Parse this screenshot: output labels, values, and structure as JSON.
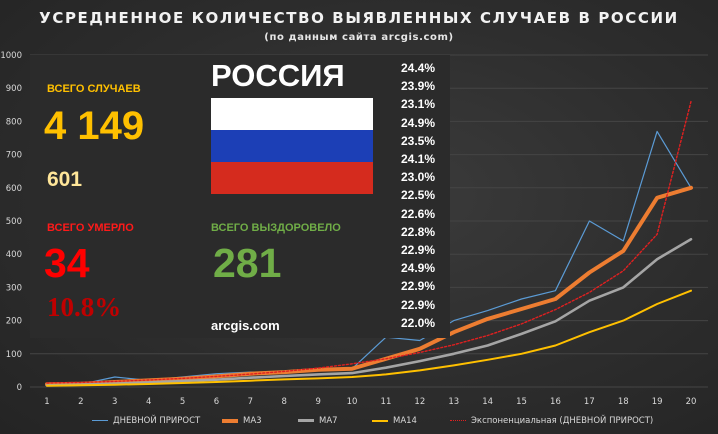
{
  "title": "УСРЕДНЕННОЕ КОЛИЧЕСТВО ВЫЯВЛЕННЫХ СЛУЧАЕВ В РОССИИ",
  "subtitle": "(по данным сайта arcgis.com)",
  "overlay": {
    "country": "РОССИЯ",
    "total_cases_label": "ВСЕГО СЛУЧАЕВ",
    "total_cases_value": "4 149",
    "new_cases_value": "601",
    "total_deaths_label": "ВСЕГО УМЕРЛО",
    "total_deaths_value": "34",
    "death_rate": "10.8%",
    "total_recovered_label": "ВСЕГО ВЫЗДОРОВЕЛО",
    "total_recovered_value": "281",
    "source": "arcgis.com"
  },
  "percent_column": [
    "24.4%",
    "23.9%",
    "23.1%",
    "24.9%",
    "23.5%",
    "24.1%",
    "23.0%",
    "22.5%",
    "22.6%",
    "22.8%",
    "22.9%",
    "24.9%",
    "22.9%",
    "22.9%",
    "22.0%"
  ],
  "colors": {
    "daily": "#5b9bd5",
    "ma3": "#ed7d31",
    "ma7": "#a5a5a5",
    "ma14": "#ffc000",
    "exp": "#e02020"
  },
  "chart_data": {
    "type": "line",
    "title": "УСРЕДНЕННОЕ КОЛИЧЕСТВО ВЫЯВЛЕННЫХ СЛУЧАЕВ В РОССИИ",
    "subtitle": "(по данным сайта arcgis.com)",
    "x": [
      1,
      2,
      3,
      4,
      5,
      6,
      7,
      8,
      9,
      10,
      11,
      12,
      13,
      14,
      15,
      16,
      17,
      18,
      19,
      20
    ],
    "ylim": [
      0,
      1000
    ],
    "yticks": [
      0,
      100,
      200,
      300,
      400,
      500,
      600,
      700,
      800,
      900,
      1000
    ],
    "grid": true,
    "legend_position": "bottom",
    "series": [
      {
        "name": "ДНЕВНОЙ ПРИРОСТ",
        "values": [
          8,
          8,
          30,
          20,
          30,
          40,
          45,
          45,
          55,
          55,
          150,
          140,
          200,
          230,
          265,
          290,
          500,
          440,
          770,
          600
        ]
      },
      {
        "name": "MA3",
        "values": [
          8,
          10,
          15,
          20,
          25,
          32,
          40,
          45,
          52,
          55,
          85,
          115,
          165,
          205,
          235,
          265,
          345,
          410,
          570,
          600
        ]
      },
      {
        "name": "MA7",
        "values": [
          5,
          7,
          10,
          14,
          18,
          22,
          28,
          33,
          38,
          42,
          58,
          78,
          100,
          125,
          160,
          198,
          260,
          300,
          385,
          445
        ]
      },
      {
        "name": "MA14",
        "values": [
          4,
          5,
          7,
          9,
          12,
          15,
          19,
          23,
          26,
          30,
          38,
          50,
          65,
          82,
          100,
          125,
          165,
          200,
          250,
          290
        ]
      },
      {
        "name": "Экспоненциальная (ДНЕВНОЙ ПРИРОСТ)",
        "values": [
          12,
          14,
          17,
          21,
          26,
          32,
          39,
          47,
          57,
          70,
          85,
          104,
          127,
          155,
          190,
          233,
          285,
          350,
          460,
          860
        ]
      }
    ]
  }
}
